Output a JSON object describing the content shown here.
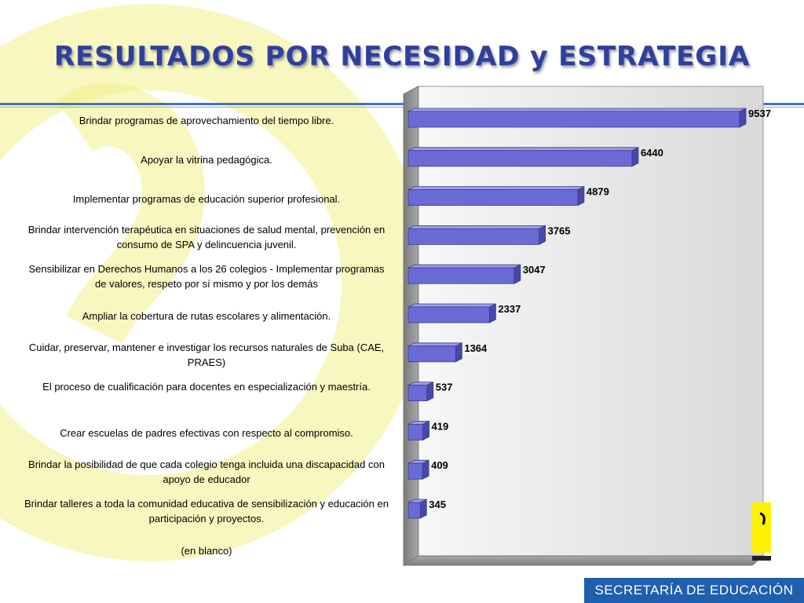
{
  "page": {
    "title": "RESULTADOS POR NECESIDAD y ESTRATEGIA",
    "footer": "SECRETARÍA DE EDUCACIÓN"
  },
  "colors": {
    "title": "#2f3f9a",
    "bar": "#6b6bd6",
    "footer": "#1f5fae",
    "logo": "#f3f08a"
  },
  "chart_data": {
    "type": "bar",
    "orientation": "horizontal",
    "style": "3d",
    "categories": [
      "Brindar programas de aprovechamiento del tiempo libre.",
      "Apoyar la vitrina pedagógica.",
      "Implementar programas de educación superior profesional.",
      "Brindar intervención terapéutica en situaciones de salud mental, prevención en consumo de SPA y delincuencia juvenil.",
      "Sensibilizar en Derechos Humanos a los 26 colegios - Implementar programas de valores, respeto por sí mismo y por los demás",
      "Ampliar la cobertura de rutas escolares y alimentación.",
      "Cuidar, preservar, mantener e investigar los recursos naturales de Suba (CAE, PRAES)",
      "El proceso de cualificación para docentes en especialización y maestría.",
      "Crear escuelas de padres efectivas con respecto al compromiso.",
      "Brindar la posibilidad de que cada colegio tenga incluida una discapacidad con apoyo de educador",
      "Brindar talleres a toda la comunidad educativa de  sensibilización y educación en participación y proyectos.",
      "(en blanco)"
    ],
    "values": [
      9537,
      6440,
      4879,
      3765,
      3047,
      2337,
      1364,
      537,
      419,
      409,
      345,
      null
    ],
    "data_labels": [
      "9537",
      "6440",
      "4879",
      "3765",
      "3047",
      "2337",
      "1364",
      "537",
      "419",
      "409",
      "345",
      ""
    ],
    "title": "",
    "xlabel": "",
    "ylabel": "",
    "xlim": [
      0,
      9537
    ],
    "grid": false,
    "legend": "none"
  }
}
